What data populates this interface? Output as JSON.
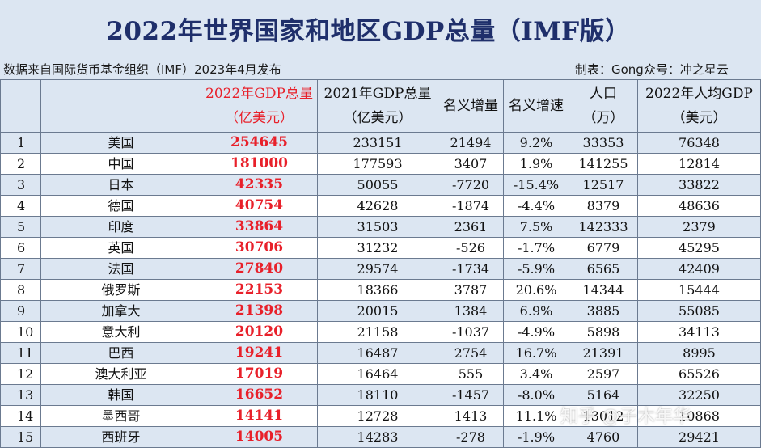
{
  "title": "2022年世界国家和地区GDP总量（IMF版）",
  "source": {
    "left": "数据来自国际货币基金组织（IMF）2023年4月发布",
    "right": "制表：Gong众号：冲之星云"
  },
  "headers": {
    "rank": "",
    "country": "",
    "gdp2022_line1": "2022年GDP总量",
    "gdp2022_line2": "（亿美元）",
    "gdp2021_line1": "2021年GDP总量",
    "gdp2021_line2": "（亿美元）",
    "nominal_increase": "名义增量",
    "nominal_growth": "名义增速",
    "population_line1": "人口",
    "population_line2": "（万）",
    "per_capita_line1": "2022年人均GDP",
    "per_capita_line2": "（美元）"
  },
  "rows": [
    {
      "rank": "1",
      "country": "美国",
      "gdp2022": "254645",
      "gdp2021": "233151",
      "increase": "21494",
      "growth": "9.2%",
      "population": "33353",
      "per_capita": "76348"
    },
    {
      "rank": "2",
      "country": "中国",
      "gdp2022": "181000",
      "gdp2021": "177593",
      "increase": "3407",
      "growth": "1.9%",
      "population": "141255",
      "per_capita": "12814"
    },
    {
      "rank": "3",
      "country": "日本",
      "gdp2022": "42335",
      "gdp2021": "50055",
      "increase": "-7720",
      "growth": "-15.4%",
      "population": "12517",
      "per_capita": "33822"
    },
    {
      "rank": "4",
      "country": "德国",
      "gdp2022": "40754",
      "gdp2021": "42628",
      "increase": "-1874",
      "growth": "-4.4%",
      "population": "8379",
      "per_capita": "48636"
    },
    {
      "rank": "5",
      "country": "印度",
      "gdp2022": "33864",
      "gdp2021": "31503",
      "increase": "2361",
      "growth": "7.5%",
      "population": "142333",
      "per_capita": "2379"
    },
    {
      "rank": "6",
      "country": "英国",
      "gdp2022": "30706",
      "gdp2021": "31232",
      "increase": "-526",
      "growth": "-1.7%",
      "population": "6779",
      "per_capita": "45295"
    },
    {
      "rank": "7",
      "country": "法国",
      "gdp2022": "27840",
      "gdp2021": "29574",
      "increase": "-1734",
      "growth": "-5.9%",
      "population": "6565",
      "per_capita": "42409"
    },
    {
      "rank": "8",
      "country": "俄罗斯",
      "gdp2022": "22153",
      "gdp2021": "18366",
      "increase": "3787",
      "growth": "20.6%",
      "population": "14344",
      "per_capita": "15444"
    },
    {
      "rank": "9",
      "country": "加拿大",
      "gdp2022": "21398",
      "gdp2021": "20015",
      "increase": "1384",
      "growth": "6.9%",
      "population": "3885",
      "per_capita": "55085"
    },
    {
      "rank": "10",
      "country": "意大利",
      "gdp2022": "20120",
      "gdp2021": "21158",
      "increase": "-1037",
      "growth": "-4.9%",
      "population": "5898",
      "per_capita": "34113"
    },
    {
      "rank": "11",
      "country": "巴西",
      "gdp2022": "19241",
      "gdp2021": "16487",
      "increase": "2754",
      "growth": "16.7%",
      "population": "21391",
      "per_capita": "8995"
    },
    {
      "rank": "12",
      "country": "澳大利亚",
      "gdp2022": "17019",
      "gdp2021": "16464",
      "increase": "555",
      "growth": "3.4%",
      "population": "2597",
      "per_capita": "65526"
    },
    {
      "rank": "13",
      "country": "韩国",
      "gdp2022": "16652",
      "gdp2021": "18110",
      "increase": "-1457",
      "growth": "-8.0%",
      "population": "5164",
      "per_capita": "32250"
    },
    {
      "rank": "14",
      "country": "墨西哥",
      "gdp2022": "14141",
      "gdp2021": "12728",
      "increase": "1413",
      "growth": "11.1%",
      "population": "13012",
      "per_capita": "10868"
    },
    {
      "rank": "15",
      "country": "西班牙",
      "gdp2022": "14005",
      "gdp2021": "14283",
      "increase": "-278",
      "growth": "-1.9%",
      "population": "4760",
      "per_capita": "29421"
    }
  ],
  "watermark": "知乎 @子木年华",
  "colors": {
    "title": "#1f2f6b",
    "highlight": "#e8202a",
    "row_odd": "#dce6f2",
    "row_even": "#ffffff"
  }
}
